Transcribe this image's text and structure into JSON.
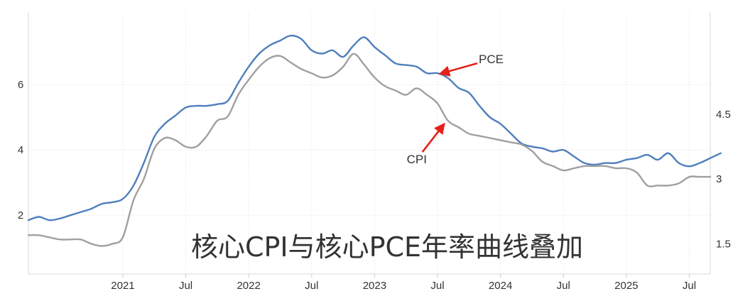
{
  "chart_data": {
    "type": "line",
    "title": "核心CPI与核心PCE年率曲线叠加",
    "x_tick_labels": [
      "2021",
      "Jul",
      "2022",
      "Jul",
      "2023",
      "Jul",
      "2024",
      "Jul",
      "2025",
      "Jul"
    ],
    "x_tick_dates": [
      "2021-01",
      "2021-07",
      "2022-01",
      "2022-07",
      "2023-01",
      "2023-07",
      "2024-01",
      "2024-07",
      "2025-01",
      "2025-07"
    ],
    "x_range": [
      "2020-04",
      "2025-09"
    ],
    "y_left": {
      "ticks": [
        2,
        4,
        6
      ],
      "range": [
        0.2,
        8.2
      ]
    },
    "y_right": {
      "ticks": [
        1.5,
        3,
        4.5
      ],
      "range": [
        0.8,
        6.85
      ]
    },
    "grid": true,
    "series": [
      {
        "name": "PCE",
        "axis": "left",
        "color": "#4f7fbd",
        "points": [
          [
            "2020-04",
            1.85
          ],
          [
            "2020-05",
            1.95
          ],
          [
            "2020-06",
            1.85
          ],
          [
            "2020-07",
            1.9
          ],
          [
            "2020-08",
            2.0
          ],
          [
            "2020-09",
            2.1
          ],
          [
            "2020-10",
            2.2
          ],
          [
            "2020-11",
            2.35
          ],
          [
            "2020-12",
            2.4
          ],
          [
            "2021-01",
            2.5
          ],
          [
            "2021-02",
            2.9
          ],
          [
            "2021-03",
            3.6
          ],
          [
            "2021-04",
            4.4
          ],
          [
            "2021-05",
            4.8
          ],
          [
            "2021-06",
            5.05
          ],
          [
            "2021-07",
            5.3
          ],
          [
            "2021-08",
            5.35
          ],
          [
            "2021-09",
            5.35
          ],
          [
            "2021-10",
            5.4
          ],
          [
            "2021-11",
            5.5
          ],
          [
            "2021-12",
            6.05
          ],
          [
            "2022-01",
            6.55
          ],
          [
            "2022-02",
            6.95
          ],
          [
            "2022-03",
            7.2
          ],
          [
            "2022-04",
            7.35
          ],
          [
            "2022-05",
            7.5
          ],
          [
            "2022-06",
            7.4
          ],
          [
            "2022-07",
            7.05
          ],
          [
            "2022-08",
            6.95
          ],
          [
            "2022-09",
            7.05
          ],
          [
            "2022-10",
            6.85
          ],
          [
            "2022-11",
            7.2
          ],
          [
            "2022-12",
            7.45
          ],
          [
            "2023-01",
            7.15
          ],
          [
            "2023-02",
            6.9
          ],
          [
            "2023-03",
            6.65
          ],
          [
            "2023-04",
            6.6
          ],
          [
            "2023-05",
            6.55
          ],
          [
            "2023-06",
            6.35
          ],
          [
            "2023-07",
            6.35
          ],
          [
            "2023-08",
            6.2
          ],
          [
            "2023-09",
            5.9
          ],
          [
            "2023-10",
            5.75
          ],
          [
            "2023-11",
            5.35
          ],
          [
            "2023-12",
            5.0
          ],
          [
            "2024-01",
            4.8
          ],
          [
            "2024-02",
            4.5
          ],
          [
            "2024-03",
            4.2
          ],
          [
            "2024-04",
            4.1
          ],
          [
            "2024-05",
            4.05
          ],
          [
            "2024-06",
            3.95
          ],
          [
            "2024-07",
            4.0
          ],
          [
            "2024-08",
            3.8
          ],
          [
            "2024-09",
            3.6
          ],
          [
            "2024-10",
            3.55
          ],
          [
            "2024-11",
            3.6
          ],
          [
            "2024-12",
            3.6
          ],
          [
            "2025-01",
            3.7
          ],
          [
            "2025-02",
            3.75
          ],
          [
            "2025-03",
            3.85
          ],
          [
            "2025-04",
            3.7
          ],
          [
            "2025-05",
            3.9
          ],
          [
            "2025-06",
            3.6
          ],
          [
            "2025-07",
            3.5
          ],
          [
            "2025-08",
            3.6
          ],
          [
            "2025-09",
            3.75
          ],
          [
            "2025-10",
            3.9
          ]
        ]
      },
      {
        "name": "CPI",
        "axis": "right",
        "color": "#a0a0a0",
        "points": [
          [
            "2020-04",
            1.7
          ],
          [
            "2020-05",
            1.7
          ],
          [
            "2020-06",
            1.65
          ],
          [
            "2020-07",
            1.6
          ],
          [
            "2020-08",
            1.6
          ],
          [
            "2020-09",
            1.6
          ],
          [
            "2020-10",
            1.5
          ],
          [
            "2020-11",
            1.45
          ],
          [
            "2020-12",
            1.5
          ],
          [
            "2021-01",
            1.65
          ],
          [
            "2021-02",
            2.5
          ],
          [
            "2021-03",
            3.0
          ],
          [
            "2021-04",
            3.7
          ],
          [
            "2021-05",
            3.95
          ],
          [
            "2021-06",
            3.9
          ],
          [
            "2021-07",
            3.75
          ],
          [
            "2021-08",
            3.75
          ],
          [
            "2021-09",
            4.0
          ],
          [
            "2021-10",
            4.35
          ],
          [
            "2021-11",
            4.45
          ],
          [
            "2021-12",
            4.95
          ],
          [
            "2022-01",
            5.3
          ],
          [
            "2022-02",
            5.6
          ],
          [
            "2022-03",
            5.8
          ],
          [
            "2022-04",
            5.85
          ],
          [
            "2022-05",
            5.7
          ],
          [
            "2022-06",
            5.55
          ],
          [
            "2022-07",
            5.45
          ],
          [
            "2022-08",
            5.35
          ],
          [
            "2022-09",
            5.4
          ],
          [
            "2022-10",
            5.6
          ],
          [
            "2022-11",
            5.9
          ],
          [
            "2022-12",
            5.65
          ],
          [
            "2023-01",
            5.35
          ],
          [
            "2023-02",
            5.15
          ],
          [
            "2023-03",
            5.05
          ],
          [
            "2023-04",
            4.95
          ],
          [
            "2023-05",
            5.1
          ],
          [
            "2023-06",
            4.95
          ],
          [
            "2023-07",
            4.75
          ],
          [
            "2023-08",
            4.35
          ],
          [
            "2023-09",
            4.2
          ],
          [
            "2023-10",
            4.05
          ],
          [
            "2023-11",
            4.0
          ],
          [
            "2023-12",
            3.95
          ],
          [
            "2024-01",
            3.9
          ],
          [
            "2024-02",
            3.85
          ],
          [
            "2024-03",
            3.8
          ],
          [
            "2024-04",
            3.65
          ],
          [
            "2024-05",
            3.4
          ],
          [
            "2024-06",
            3.3
          ],
          [
            "2024-07",
            3.2
          ],
          [
            "2024-08",
            3.25
          ],
          [
            "2024-09",
            3.3
          ],
          [
            "2024-10",
            3.3
          ],
          [
            "2024-11",
            3.3
          ],
          [
            "2024-12",
            3.25
          ],
          [
            "2025-01",
            3.25
          ],
          [
            "2025-02",
            3.15
          ],
          [
            "2025-03",
            2.85
          ],
          [
            "2025-04",
            2.85
          ],
          [
            "2025-05",
            2.85
          ],
          [
            "2025-06",
            2.9
          ],
          [
            "2025-07",
            3.05
          ],
          [
            "2025-08",
            3.05
          ],
          [
            "2025-09",
            3.05
          ]
        ]
      }
    ],
    "annotations": [
      {
        "text": "PCE",
        "series": "PCE",
        "point_date": "2023-07",
        "point_value": 6.35,
        "label_position": "upper-right"
      },
      {
        "text": "CPI",
        "series": "CPI",
        "point_date": "2023-08",
        "point_value": 4.35,
        "label_position": "lower-left"
      }
    ],
    "arrow_color": "#e5211b"
  }
}
